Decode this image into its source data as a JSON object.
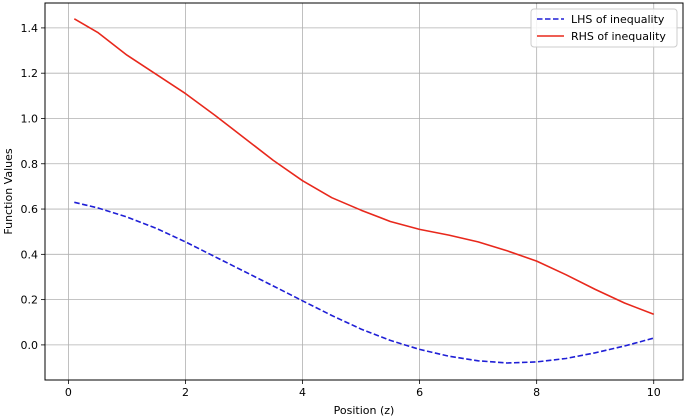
{
  "chart_data": {
    "type": "line",
    "title": "",
    "xlabel": "Position (z)",
    "ylabel": "Function Values",
    "xlim": [
      -0.4,
      10.5
    ],
    "ylim": [
      -0.155,
      1.51
    ],
    "xticks": [
      0,
      2,
      4,
      6,
      8,
      10
    ],
    "yticks": [
      0.0,
      0.2,
      0.4,
      0.6,
      0.8,
      1.0,
      1.2,
      1.4
    ],
    "grid": true,
    "legend": "top-right",
    "series": [
      {
        "name": "LHS of inequality",
        "color": "#1f1fd6",
        "style": "dashed",
        "x": [
          0.1,
          0.5,
          1.0,
          1.5,
          2.0,
          2.5,
          3.0,
          3.5,
          4.0,
          4.5,
          5.0,
          5.5,
          6.0,
          6.5,
          7.0,
          7.5,
          8.0,
          8.5,
          9.0,
          9.5,
          10.0
        ],
        "y": [
          0.63,
          0.605,
          0.565,
          0.515,
          0.455,
          0.39,
          0.325,
          0.26,
          0.195,
          0.13,
          0.07,
          0.02,
          -0.02,
          -0.05,
          -0.07,
          -0.08,
          -0.075,
          -0.06,
          -0.035,
          -0.005,
          0.03
        ]
      },
      {
        "name": "RHS of inequality",
        "color": "#e8281c",
        "style": "solid",
        "x": [
          0.1,
          0.5,
          1.0,
          1.5,
          2.0,
          2.5,
          3.0,
          3.5,
          4.0,
          4.5,
          5.0,
          5.5,
          6.0,
          6.5,
          7.0,
          7.5,
          8.0,
          8.5,
          9.0,
          9.5,
          10.0
        ],
        "y": [
          1.44,
          1.38,
          1.28,
          1.195,
          1.11,
          1.015,
          0.915,
          0.815,
          0.725,
          0.65,
          0.595,
          0.545,
          0.51,
          0.485,
          0.455,
          0.415,
          0.37,
          0.31,
          0.245,
          0.185,
          0.135
        ]
      }
    ]
  }
}
